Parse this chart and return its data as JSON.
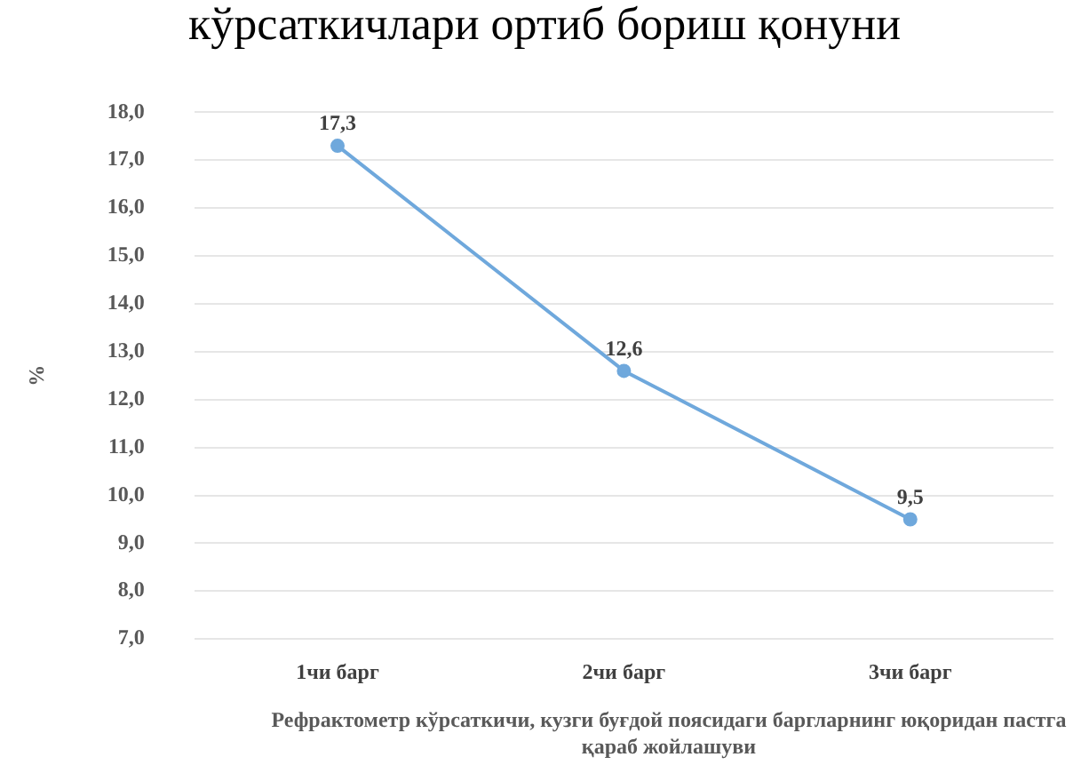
{
  "chart_data": {
    "type": "line",
    "title": "кўрсаткичлари ортиб бориш қонуни",
    "xlabel": "Рефрактометр кўрсаткичи, кузги буғдой поясидаги баргларнинг юқоридан пастга қараб жойлашуви",
    "ylabel": "%",
    "categories": [
      "1чи барг",
      "2чи барг",
      "3чи барг"
    ],
    "series": [
      {
        "color": "#6fa8dc",
        "values": [
          17.3,
          12.6,
          9.5
        ],
        "value_labels": [
          "17,3",
          "12,6",
          "9,5"
        ]
      }
    ],
    "ylim": [
      7,
      18
    ],
    "yticks": [
      {
        "value": 7,
        "label": "7,0"
      },
      {
        "value": 8,
        "label": "8,0"
      },
      {
        "value": 9,
        "label": "9,0"
      },
      {
        "value": 10,
        "label": "10,0"
      },
      {
        "value": 11,
        "label": "11,0"
      },
      {
        "value": 12,
        "label": "12,0"
      },
      {
        "value": 13,
        "label": "13,0"
      },
      {
        "value": 14,
        "label": "14,0"
      },
      {
        "value": 15,
        "label": "15,0"
      },
      {
        "value": 16,
        "label": "16,0"
      },
      {
        "value": 17,
        "label": "17,0"
      },
      {
        "value": 18,
        "label": "18,0"
      }
    ],
    "grid": "y",
    "legend": false,
    "marker": "circle",
    "line_style": "solid"
  }
}
